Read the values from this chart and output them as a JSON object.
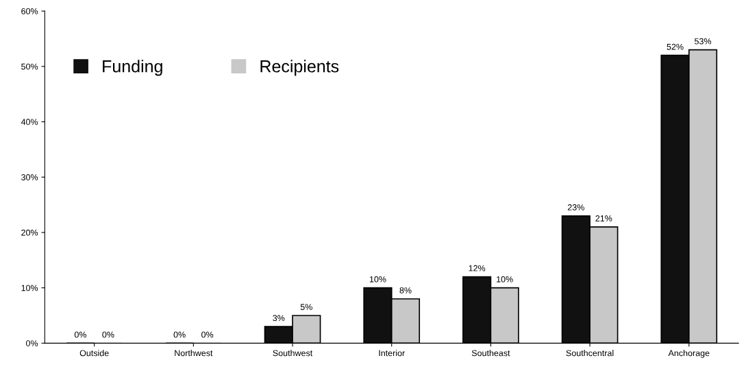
{
  "chart_data": {
    "type": "bar",
    "categories": [
      "Outside",
      "Northwest",
      "Southwest",
      "Interior",
      "Southeast",
      "Southcentral",
      "Anchorage"
    ],
    "series": [
      {
        "name": "Funding",
        "color": "#111111",
        "values": [
          0,
          0,
          3,
          10,
          12,
          23,
          52
        ],
        "value_labels": [
          "0%",
          "0%",
          "3%",
          "10%",
          "12%",
          "23%",
          "52%"
        ]
      },
      {
        "name": "Recipients",
        "color": "#c8c8c8",
        "values": [
          0,
          0,
          5,
          8,
          10,
          21,
          53
        ],
        "value_labels": [
          "0%",
          "0%",
          "5%",
          "8%",
          "10%",
          "21%",
          "53%"
        ]
      }
    ],
    "ylim": [
      0,
      60
    ],
    "yticks": [
      {
        "value": 0,
        "label": "0%"
      },
      {
        "value": 10,
        "label": "10%"
      },
      {
        "value": 20,
        "label": "20%"
      },
      {
        "value": 30,
        "label": "30%"
      },
      {
        "value": 40,
        "label": "40%"
      },
      {
        "value": 50,
        "label": "50%"
      },
      {
        "value": 60,
        "label": "60%"
      }
    ],
    "grid": false,
    "legend": "top left"
  }
}
